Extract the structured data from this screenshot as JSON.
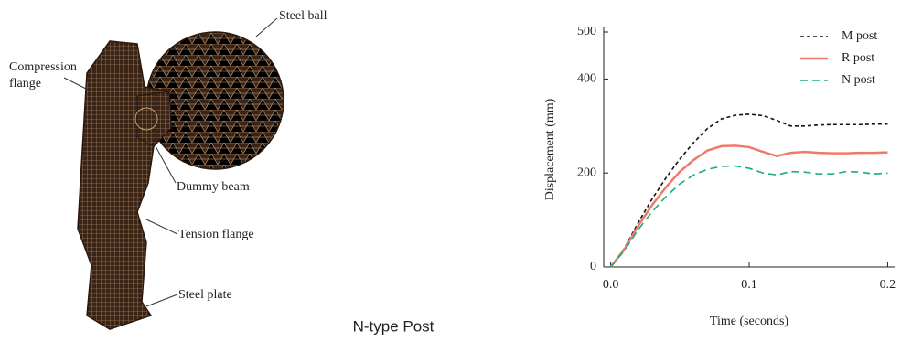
{
  "diagram": {
    "labels": {
      "steel_ball": "Steel ball",
      "compression_flange": [
        "Compression",
        "flange"
      ],
      "dummy_beam": "Dummy beam",
      "tension_flange": "Tension flange",
      "steel_plate": "Steel plate"
    },
    "caption": "N-type Post"
  },
  "chart_data": {
    "type": "line",
    "x_label": "Time (seconds)",
    "y_label": "Displacement (mm)",
    "x": [
      0,
      0.01,
      0.02,
      0.03,
      0.04,
      0.05,
      0.06,
      0.07,
      0.08,
      0.09,
      0.1,
      0.11,
      0.12,
      0.13,
      0.14,
      0.15,
      0.16,
      0.17,
      0.18,
      0.19,
      0.2
    ],
    "series": [
      {
        "name": "M post",
        "color": "#111111",
        "dash": "dashed",
        "values": [
          0,
          40,
          95,
          145,
          190,
          230,
          265,
          295,
          315,
          323,
          325,
          322,
          312,
          300,
          300,
          302,
          303,
          303,
          303,
          304,
          304
        ]
      },
      {
        "name": "R post",
        "color": "#f07a6a",
        "dash": "solid",
        "values": [
          0,
          38,
          88,
          132,
          170,
          203,
          228,
          248,
          257,
          258,
          255,
          245,
          236,
          243,
          245,
          243,
          242,
          242,
          243,
          243,
          244
        ]
      },
      {
        "name": "N post",
        "color": "#1aae7a",
        "dash": "longdash",
        "values": [
          0,
          35,
          80,
          118,
          150,
          177,
          196,
          208,
          214,
          215,
          210,
          200,
          196,
          203,
          202,
          198,
          198,
          203,
          202,
          198,
          200
        ]
      }
    ],
    "xlim": [
      -0.005,
      0.205
    ],
    "ylim": [
      0,
      500
    ],
    "xticks": [
      {
        "value": 0,
        "label": "0.0"
      },
      0.1,
      0.2
    ],
    "yticks": [
      0,
      200,
      400,
      500
    ],
    "legend": "top-right"
  }
}
